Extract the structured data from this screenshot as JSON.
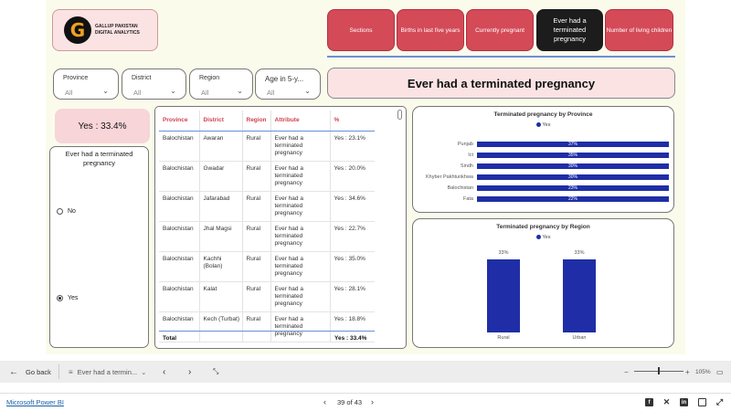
{
  "logo": {
    "mark": "G",
    "line1": "GALLUP PAKISTAN",
    "line2": "DIGITAL ANALYTICS"
  },
  "nav": [
    {
      "label": "Sections"
    },
    {
      "label": "Births in last five years"
    },
    {
      "label": "Currently pregnant"
    },
    {
      "label": "Ever had a terminated pregnancy"
    },
    {
      "label": "Number of living children"
    }
  ],
  "slicers": [
    {
      "label": "Province",
      "value": "All"
    },
    {
      "label": "District",
      "value": "All"
    },
    {
      "label": "Region",
      "value": "All"
    },
    {
      "label": "Age in 5-y...",
      "value": "All"
    }
  ],
  "page_title": "Ever had a terminated pregnancy",
  "kpi": "Yes : 33.4%",
  "filter_panel": {
    "title": "Ever had a terminated pregnancy",
    "options": [
      {
        "label": "No",
        "selected": false
      },
      {
        "label": "Yes",
        "selected": true
      }
    ]
  },
  "table": {
    "headers": [
      "Province",
      "District",
      "Region",
      "Attribute",
      "%"
    ],
    "rows": [
      [
        "Balochistan",
        "Awaran",
        "Rural",
        "Ever had a terminated pregnancy",
        "Yes : 23.1%"
      ],
      [
        "Balochistan",
        "Gwadar",
        "Rural",
        "Ever had a terminated pregnancy",
        "Yes : 20.0%"
      ],
      [
        "Balochistan",
        "Jafarabad",
        "Rural",
        "Ever had a terminated pregnancy",
        "Yes : 34.6%"
      ],
      [
        "Balochistan",
        "Jhal Magsi",
        "Rural",
        "Ever had a terminated pregnancy",
        "Yes : 22.7%"
      ],
      [
        "Balochistan",
        "Kachhi (Bolan)",
        "Rural",
        "Ever had a terminated pregnancy",
        "Yes : 35.0%"
      ],
      [
        "Balochistan",
        "Kalat",
        "Rural",
        "Ever had a terminated pregnancy",
        "Yes : 28.1%"
      ],
      [
        "Balochistan",
        "Kech (Turbat)",
        "Rural",
        "Ever had a terminated pregnancy",
        "Yes : 18.8%"
      ]
    ],
    "total_label": "Total",
    "total_value": "Yes : 33.4%"
  },
  "chart_data": [
    {
      "type": "bar",
      "orientation": "horizontal",
      "title": "Terminated pregnancy by Province",
      "legend": "Yes",
      "categories": [
        "Punjab",
        "Ict",
        "Sindh",
        "Khyber Pakhtunkhwa",
        "Balochistan",
        "Fata"
      ],
      "series": [
        {
          "name": "Yes",
          "values": [
            37,
            35,
            30,
            30,
            23,
            22
          ]
        }
      ],
      "labels": [
        "37%",
        "35%",
        "30%",
        "30%",
        "23%",
        "22%"
      ],
      "color": "#1f2ea6"
    },
    {
      "type": "bar",
      "orientation": "vertical",
      "title": "Terminated pregnancy by Region",
      "legend": "Yes",
      "categories": [
        "Rural",
        "Urban"
      ],
      "series": [
        {
          "name": "Yes",
          "values": [
            33,
            33
          ]
        }
      ],
      "labels": [
        "33%",
        "33%"
      ],
      "color": "#1f2ea6"
    }
  ],
  "bottom_bar": {
    "back": "Go back",
    "page_tab": "Ever had a termin...",
    "zoom": "105%"
  },
  "footer": {
    "brand": "Microsoft Power BI",
    "pages": "39 of 43"
  }
}
